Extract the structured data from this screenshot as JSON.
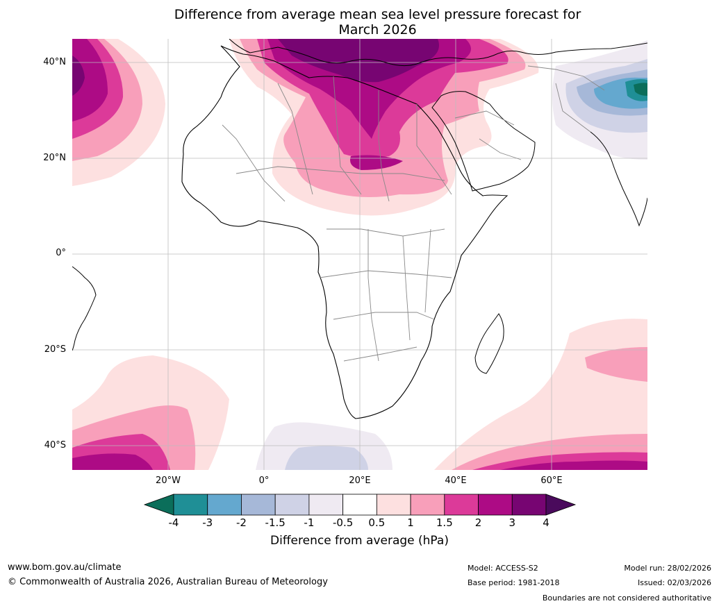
{
  "title": {
    "line1": "Difference from average mean sea level pressure forecast for",
    "line2": "March 2026"
  },
  "map": {
    "lat_labels": [
      "40°N",
      "20°N",
      "0°",
      "20°S",
      "40°S"
    ],
    "lon_labels": [
      "20°W",
      "0°",
      "20°E",
      "40°E",
      "60°E"
    ],
    "extent": {
      "lon_min": -40,
      "lon_max": 80,
      "lat_min": -45,
      "lat_max": 45
    }
  },
  "colorbar": {
    "label": "Difference from average (hPa)",
    "ticks": [
      "-4",
      "-3",
      "-2",
      "-1.5",
      "-1",
      "-0.5",
      "0.5",
      "1",
      "1.5",
      "2",
      "3",
      "4"
    ],
    "colors": {
      "below_min": "#0b6e5a",
      "bins": [
        "#1f8f96",
        "#64a8cf",
        "#a6b8d8",
        "#cfd2e6",
        "#efeaf2",
        "#ffffff",
        "#fde0e0",
        "#f89fba",
        "#dc3a99",
        "#ad0b85",
        "#770572"
      ],
      "above_max": "#4a0a5c"
    }
  },
  "footer": {
    "url": "www.bom.gov.au/climate",
    "copyright": "© Commonwealth of Australia 2026, Australian Bureau of Meteorology",
    "model": "Model: ACCESS-S2",
    "base_period": "Base period: 1981-2018",
    "model_run": "Model run: 28/02/2026",
    "issued": "Issued: 02/03/2026",
    "disclaimer": "Boundaries are not considered authoritative"
  }
}
